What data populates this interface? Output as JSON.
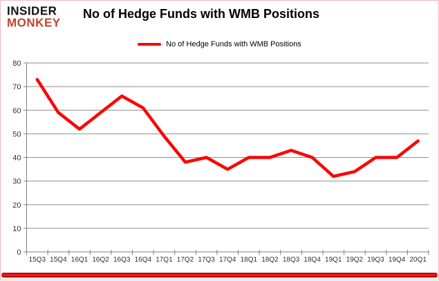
{
  "header": {
    "logo_line1": "INSIDER",
    "logo_line2": "MONKEY",
    "title": "No of Hedge Funds with WMB Positions"
  },
  "legend": {
    "label": "No of Hedge Funds with WMB Positions"
  },
  "colors": {
    "series": "#fe0000",
    "logo_text": "#111111",
    "logo_accent": "#c0452f",
    "grid": "#8e8e8e",
    "axis": "#7f7f7f",
    "tick_text": "#303030",
    "frame_border": "#f3b9b9",
    "bottom_bar_core": "#ff1e1e",
    "bottom_bar_edge": "#9e0000"
  },
  "chart_data": {
    "type": "line",
    "title": "No of Hedge Funds with WMB Positions",
    "categories": [
      "15Q3",
      "15Q4",
      "16Q1",
      "16Q2",
      "16Q3",
      "16Q4",
      "17Q1",
      "17Q2",
      "17Q3",
      "17Q4",
      "18Q1",
      "18Q2",
      "18Q3",
      "18Q4",
      "19Q1",
      "19Q2",
      "19Q3",
      "19Q4",
      "20Q1"
    ],
    "series": [
      {
        "name": "No of Hedge Funds with WMB Positions",
        "color": "#fe0000",
        "values": [
          73,
          59,
          52,
          59,
          66,
          61,
          49,
          38,
          40,
          35,
          40,
          40,
          43,
          40,
          32,
          34,
          40,
          40,
          47
        ]
      }
    ],
    "xlabel": "",
    "ylabel": "",
    "ylim": [
      0,
      80
    ],
    "ytick_interval": 10,
    "grid": true,
    "legend_position": "top-center"
  }
}
